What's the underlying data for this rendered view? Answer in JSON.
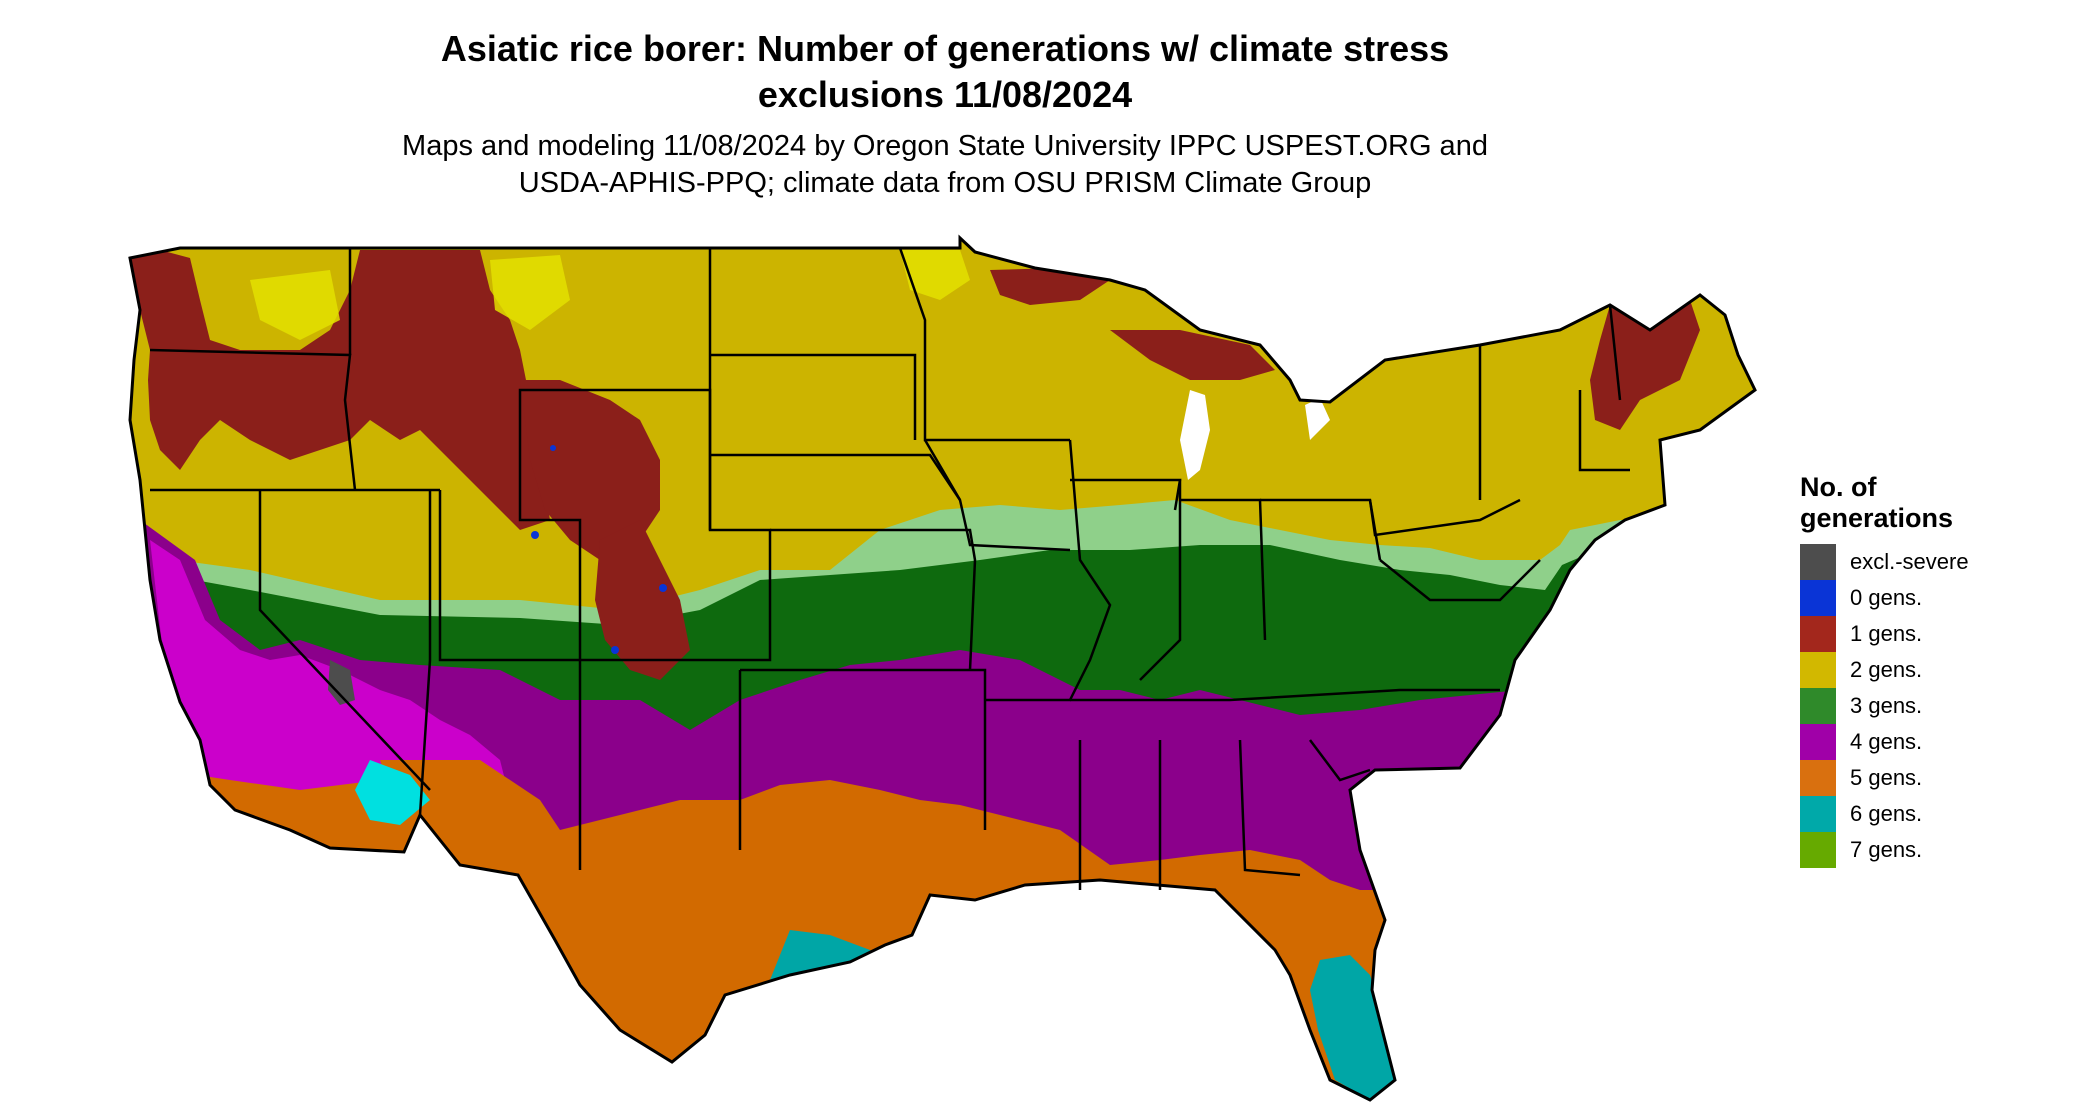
{
  "header": {
    "title_line1": "Asiatic rice borer: Number of generations w/ climate stress",
    "title_line2": "exclusions 11/08/2024",
    "subtitle_line1": "Maps and modeling 11/08/2024 by Oregon State University IPPC USPEST.ORG and",
    "subtitle_line2": "USDA-APHIS-PPQ; climate data from OSU PRISM Climate Group"
  },
  "legend": {
    "title_line1": "No. of",
    "title_line2": "generations",
    "items": [
      {
        "label": "excl.-severe",
        "color": "#4d4d4d"
      },
      {
        "label": "0 gens.",
        "color": "#0a34d6"
      },
      {
        "label": "1 gens.",
        "color": "#a3271c"
      },
      {
        "label": "2 gens.",
        "color": "#d2b800"
      },
      {
        "label": "3 gens.",
        "color": "#2f8a2a"
      },
      {
        "label": "4 gens.",
        "color": "#a000a8"
      },
      {
        "label": "5 gens.",
        "color": "#d9700f"
      },
      {
        "label": "6 gens.",
        "color": "#00a9a9"
      },
      {
        "label": "7 gens.",
        "color": "#66aa00"
      }
    ]
  },
  "map": {
    "region": "contiguous-united-states",
    "zone_colors": {
      "gen1": "#8b1f1a",
      "gen2": "#ccb400",
      "gen2_light": "#e3e100",
      "gen3": "#0e6a0e",
      "gen3_light": "#8fd08a",
      "gen4": "#8b008b",
      "gen4_light": "#e000e0",
      "gen5": "#d26a00",
      "gen6": "#00a6a6",
      "gen6_light": "#00e0e0",
      "gen7": "#66cc00",
      "excluded": "#4d4d4d",
      "gen0": "#0a34d6"
    }
  }
}
